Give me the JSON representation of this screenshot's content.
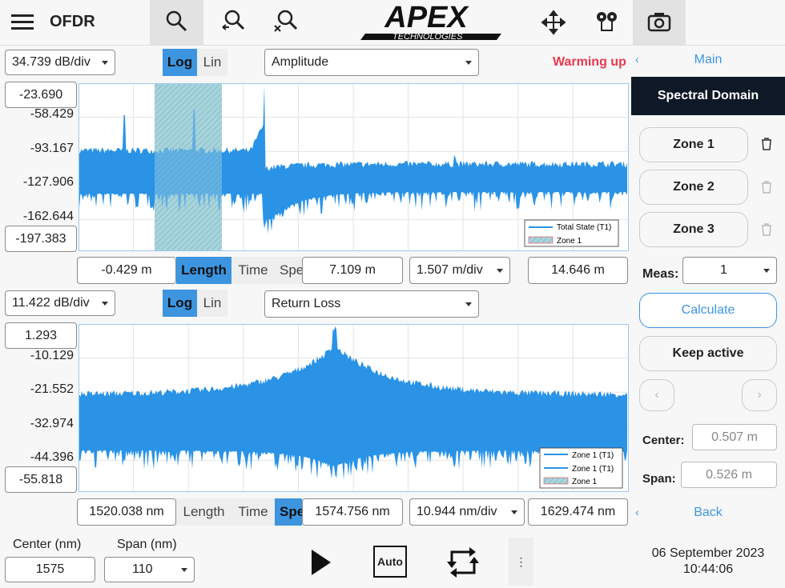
{
  "top_bar": {
    "app_title": "OFDR",
    "logo_main": "APEX",
    "logo_sub": "TECHNOLOGIES"
  },
  "upper_panel": {
    "scale": "34.739 dB/div",
    "log": "Log",
    "lin": "Lin",
    "mode": "Amplitude",
    "status": "Warming up",
    "y_top": "-23.690",
    "y_ticks": [
      "-58.429",
      "-93.167",
      "-127.906",
      "-162.644"
    ],
    "y_bottom": "-197.383",
    "legend": [
      "Total State (T1)",
      "Zone 1"
    ],
    "x_start": "-0.429 m",
    "tab_length": "Length",
    "tab_time": "Time",
    "tab_spectrum": "Spe",
    "x_center": "7.109 m",
    "x_div": "1.507 m/div",
    "x_end": "14.646 m"
  },
  "lower_panel": {
    "scale": "11.422 dB/div",
    "log": "Log",
    "lin": "Lin",
    "mode": "Return Loss",
    "y_top": "1.293",
    "y_ticks": [
      "-10.129",
      "-21.552",
      "-32.974",
      "-44.396"
    ],
    "y_bottom": "-55.818",
    "legend": [
      "Zone 1 (T1)",
      "Zone 1 (T1)",
      "Zone 1"
    ],
    "x_start": "1520.038 nm",
    "tab_length": "Length",
    "tab_time": "Time",
    "tab_spectrum": "Spe",
    "x_center": "1574.756 nm",
    "x_div": "10.944 nm/div",
    "x_end": "1629.474 nm"
  },
  "sidebar": {
    "main": "Main",
    "title": "Spectral Domain",
    "zones": [
      "Zone 1",
      "Zone 2",
      "Zone 3"
    ],
    "meas_label": "Meas:",
    "meas_value": "1",
    "calculate": "Calculate",
    "keep_active": "Keep active",
    "center_label": "Center:",
    "center_value": "0.507 m",
    "span_label": "Span:",
    "span_value": "0.526 m",
    "back": "Back"
  },
  "bottom_bar": {
    "center_label": "Center (nm)",
    "center_value": "1575",
    "span_label": "Span (nm)",
    "span_value": "110",
    "auto": "Auto",
    "date": "06 September 2023",
    "time": "10:44:06"
  }
}
